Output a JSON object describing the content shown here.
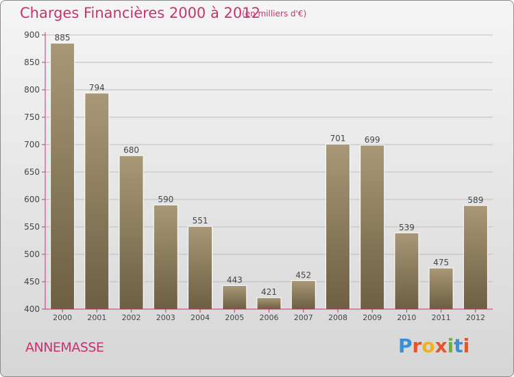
{
  "header": {
    "title": "Charges Financières 2000 à 2012",
    "subtitle": "(en milliers d'€)"
  },
  "footer": {
    "town": "ANNEMASSE",
    "logo_text": "Proxiti",
    "logo_colors": [
      "#3a8fd6",
      "#e8542a",
      "#f2b01e",
      "#e8542a",
      "#6bb434",
      "#3a8fd6",
      "#e8542a"
    ]
  },
  "chart_data": {
    "type": "bar",
    "categories": [
      "2000",
      "2001",
      "2002",
      "2003",
      "2004",
      "2005",
      "2006",
      "2007",
      "2008",
      "2009",
      "2010",
      "2011",
      "2012"
    ],
    "values": [
      885,
      794,
      680,
      590,
      551,
      443,
      421,
      452,
      701,
      699,
      539,
      475,
      589
    ],
    "ylim": [
      400,
      900
    ],
    "yticks": [
      400,
      450,
      500,
      550,
      600,
      650,
      700,
      750,
      800,
      850,
      900
    ],
    "grid": true,
    "bar_color_top": "#a89878",
    "bar_color_bottom": "#6e5e42",
    "axis_color": "#c8326e"
  }
}
